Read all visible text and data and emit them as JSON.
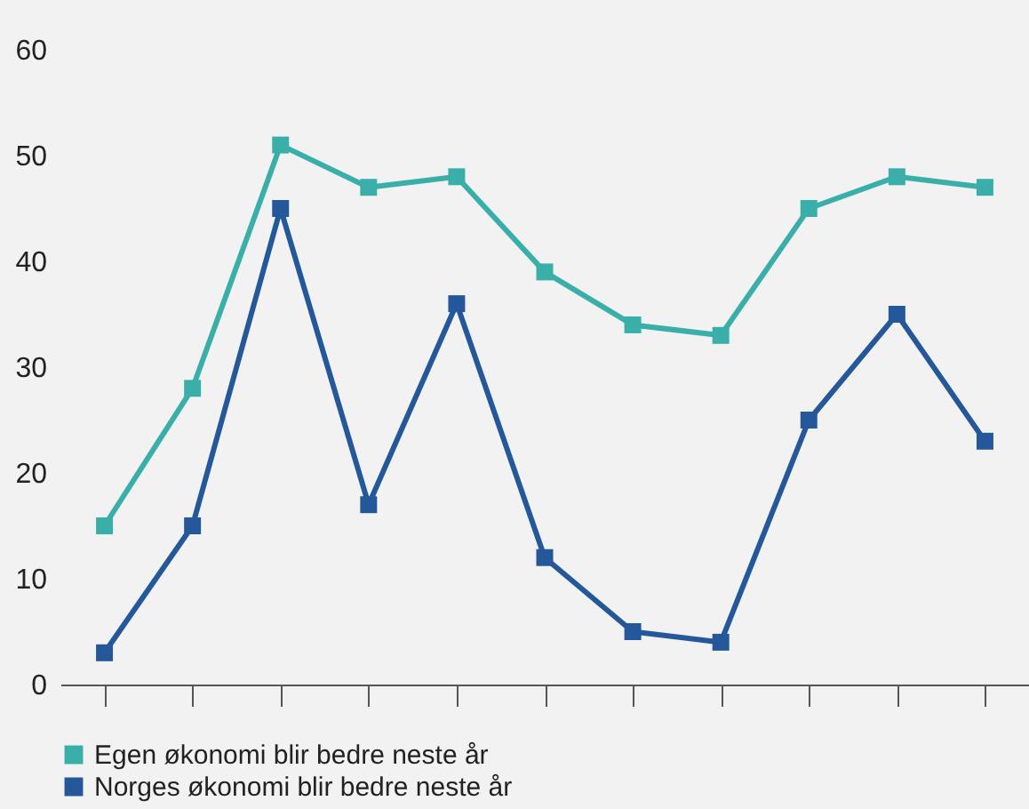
{
  "chart_data": {
    "type": "line",
    "categories": [
      null,
      null,
      null,
      null,
      null,
      null,
      null,
      null,
      null,
      null,
      null
    ],
    "series": [
      {
        "name": "Egen økonomi blir bedre neste år",
        "color": "#3aafa9",
        "values": [
          15,
          28,
          51,
          47,
          48,
          39,
          34,
          33,
          45,
          48,
          47
        ]
      },
      {
        "name": "Norges økonomi blir bedre neste år",
        "color": "#24589a",
        "values": [
          3,
          15,
          45,
          17,
          36,
          12,
          5,
          4,
          25,
          35,
          23
        ]
      }
    ],
    "ylim": [
      0,
      60
    ],
    "yticks": [
      0,
      10,
      20,
      30,
      40,
      50,
      60
    ],
    "marker": "square",
    "line_style": "solid",
    "legend": "bottom",
    "grid": false
  }
}
